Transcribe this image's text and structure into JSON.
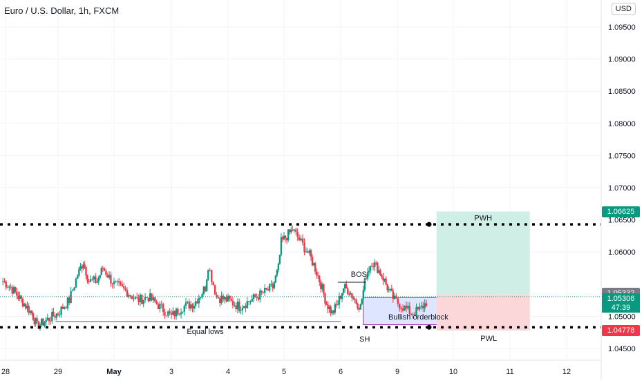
{
  "header": {
    "title": "Euro / U.S. Dollar, 1h, FXCM",
    "currency_button": "USD"
  },
  "chart_data": {
    "type": "candlestick",
    "title": "Euro / U.S. Dollar, 1h, FXCM",
    "ylim": [
      1.043,
      1.0995
    ],
    "yticks": [
      {
        "value": 1.095,
        "label": "1.09500"
      },
      {
        "value": 1.09,
        "label": "1.09000"
      },
      {
        "value": 1.085,
        "label": "1.08500"
      },
      {
        "value": 1.08,
        "label": "1.08000"
      },
      {
        "value": 1.075,
        "label": "1.07500"
      },
      {
        "value": 1.07,
        "label": "1.07000"
      },
      {
        "value": 1.065,
        "label": "1.06500"
      },
      {
        "value": 1.06,
        "label": "1.06000"
      },
      {
        "value": 1.05,
        "label": "1.05000"
      },
      {
        "value": 1.045,
        "label": "1.04500"
      }
    ],
    "xlim": [
      28,
      13
    ],
    "xticks": [
      {
        "value": 28,
        "label": "28"
      },
      {
        "value": 29,
        "label": "29"
      },
      {
        "value": 30,
        "label": "May"
      },
      {
        "value": 31,
        "label": "3"
      },
      {
        "value": 32,
        "label": "4"
      },
      {
        "value": 33,
        "label": "5"
      },
      {
        "value": 34,
        "label": "6"
      },
      {
        "value": 35,
        "label": "9"
      },
      {
        "value": 36,
        "label": "10"
      },
      {
        "value": 37,
        "label": "11"
      },
      {
        "value": 38,
        "label": "12"
      }
    ],
    "x_axis_is_day_index": true,
    "grid": true,
    "candles_close_path": [
      [
        27.95,
        1.0555
      ],
      [
        28.1,
        1.0545
      ],
      [
        28.3,
        1.0525
      ],
      [
        28.5,
        1.0505
      ],
      [
        28.6,
        1.0485
      ],
      [
        28.8,
        1.0495
      ],
      [
        29.0,
        1.0505
      ],
      [
        29.2,
        1.0525
      ],
      [
        29.35,
        1.0565
      ],
      [
        29.45,
        1.0585
      ],
      [
        29.55,
        1.0555
      ],
      [
        29.7,
        1.0555
      ],
      [
        29.8,
        1.0575
      ],
      [
        30.0,
        1.055
      ],
      [
        30.2,
        1.054
      ],
      [
        30.4,
        1.0525
      ],
      [
        30.6,
        1.053
      ],
      [
        30.8,
        1.0515
      ],
      [
        31.0,
        1.05
      ],
      [
        31.2,
        1.0515
      ],
      [
        31.4,
        1.052
      ],
      [
        31.6,
        1.0545
      ],
      [
        31.65,
        1.058
      ],
      [
        31.8,
        1.053
      ],
      [
        32.0,
        1.0525
      ],
      [
        32.2,
        1.0515
      ],
      [
        32.4,
        1.0525
      ],
      [
        32.6,
        1.0535
      ],
      [
        32.8,
        1.0545
      ],
      [
        32.9,
        1.0575
      ],
      [
        32.95,
        1.0615
      ],
      [
        33.05,
        1.0625
      ],
      [
        33.15,
        1.0635
      ],
      [
        33.3,
        1.0615
      ],
      [
        33.45,
        1.0595
      ],
      [
        33.55,
        1.0575
      ],
      [
        33.65,
        1.055
      ],
      [
        33.75,
        1.052
      ],
      [
        33.85,
        1.0505
      ],
      [
        33.95,
        1.052
      ],
      [
        34.05,
        1.0545
      ],
      [
        34.15,
        1.054
      ],
      [
        34.25,
        1.0525
      ],
      [
        34.35,
        1.0515
      ],
      [
        34.45,
        1.0565
      ],
      [
        34.55,
        1.0585
      ],
      [
        34.65,
        1.0575
      ],
      [
        34.75,
        1.056
      ],
      [
        34.85,
        1.054
      ],
      [
        34.95,
        1.0525
      ],
      [
        35.1,
        1.0515
      ],
      [
        35.25,
        1.0505
      ],
      [
        35.4,
        1.051
      ],
      [
        35.55,
        1.0525
      ]
    ],
    "annotations": [
      {
        "label": "Equal lows",
        "type": "line",
        "x_from": 28.95,
        "x_to": 34.0,
        "y": 1.0492
      },
      {
        "label": "BOS",
        "type": "line",
        "x_from": 33.95,
        "x_to": 34.45,
        "y": 1.0553
      },
      {
        "label": "Bullish orderblock",
        "type": "box",
        "x_from": 34.4,
        "x_to": 36.5,
        "y_from": 1.0487,
        "y_to": 1.0529
      },
      {
        "label": "SH",
        "type": "text",
        "x": 34.4,
        "y": 1.0465
      },
      {
        "label": "PWH",
        "type": "box",
        "x_from": 35.7,
        "x_to": 37.35,
        "y_from": 1.0534,
        "y_to": 1.0663
      },
      {
        "label": "PWL",
        "type": "box",
        "x_from": 35.7,
        "x_to": 37.35,
        "y_from": 1.0478,
        "y_to": 1.0534
      }
    ],
    "horizontal_levels": [
      {
        "name": "PWH",
        "value": 1.06625,
        "label": "1.06625",
        "color": "#089981",
        "style": "dotted-line",
        "line_value": 1.0643
      },
      {
        "name": "PWL",
        "value": 1.04778,
        "label": "1.04778",
        "color": "#f23645",
        "style": "dotted-line",
        "line_value": 1.0483
      },
      {
        "name": "current-dotted",
        "value": 1.05306,
        "label": "1.05306",
        "countdown": "47:39",
        "color": "#089981"
      },
      {
        "name": "last",
        "value": 1.05332,
        "label": "1.05332",
        "color": "#787b86"
      }
    ],
    "colors": {
      "up": "#089981",
      "down": "#f23645",
      "grid": "#f0f3fa",
      "axis_text": "#131722",
      "blue_box": "#dde5ff",
      "purple_border": "#9c27b0",
      "green_zone": "#cfeee6",
      "red_zone": "#fcd7d9"
    }
  }
}
